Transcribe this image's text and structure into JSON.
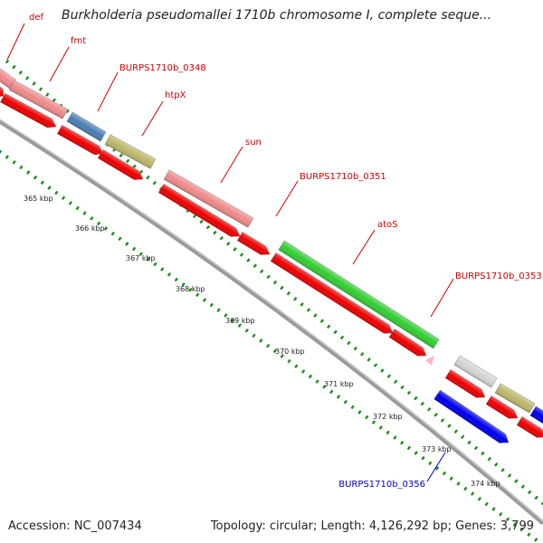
{
  "title": "Burkholderia pseudomallei 1710b chromosome I, complete seque...",
  "accession": "Accession: NC_007434",
  "summary": "Topology: circular; Length: 4,126,292 bp; Genes: 3,799",
  "colors": {
    "backbone": "#9a9a9a",
    "tick_green": "#1e8c1e",
    "cds": "#ee0000",
    "label_red": "#cc0000",
    "label_blue": "#0000cc",
    "gene_pink": "#ef8a8a",
    "gene_steelblue": "#4a7fb5",
    "gene_olive": "#bdb76b",
    "gene_green": "#32cd32",
    "gene_grey": "#d4d4d4",
    "gene_blue": "#0000ee",
    "rna_pink": "#ffb6c1"
  },
  "gene_labels": [
    {
      "name": "def",
      "color": "label_red"
    },
    {
      "name": "fmt",
      "color": "label_red"
    },
    {
      "name": "BURPS1710b_0348",
      "color": "label_red"
    },
    {
      "name": "htpX",
      "color": "label_red"
    },
    {
      "name": "sun",
      "color": "label_red"
    },
    {
      "name": "BURPS1710b_0351",
      "color": "label_red"
    },
    {
      "name": "atoS",
      "color": "label_red"
    },
    {
      "name": "BURPS1710b_0353",
      "color": "label_red"
    },
    {
      "name": "BURPS1710b_0356",
      "color": "label_blue"
    }
  ],
  "kbp_ticks": [
    "365 kbp",
    "366 kbp",
    "367 kbp",
    "368 kbp",
    "369 kbp",
    "370 kbp",
    "371 kbp",
    "372 kbp",
    "373 kbp",
    "374 kbp"
  ]
}
